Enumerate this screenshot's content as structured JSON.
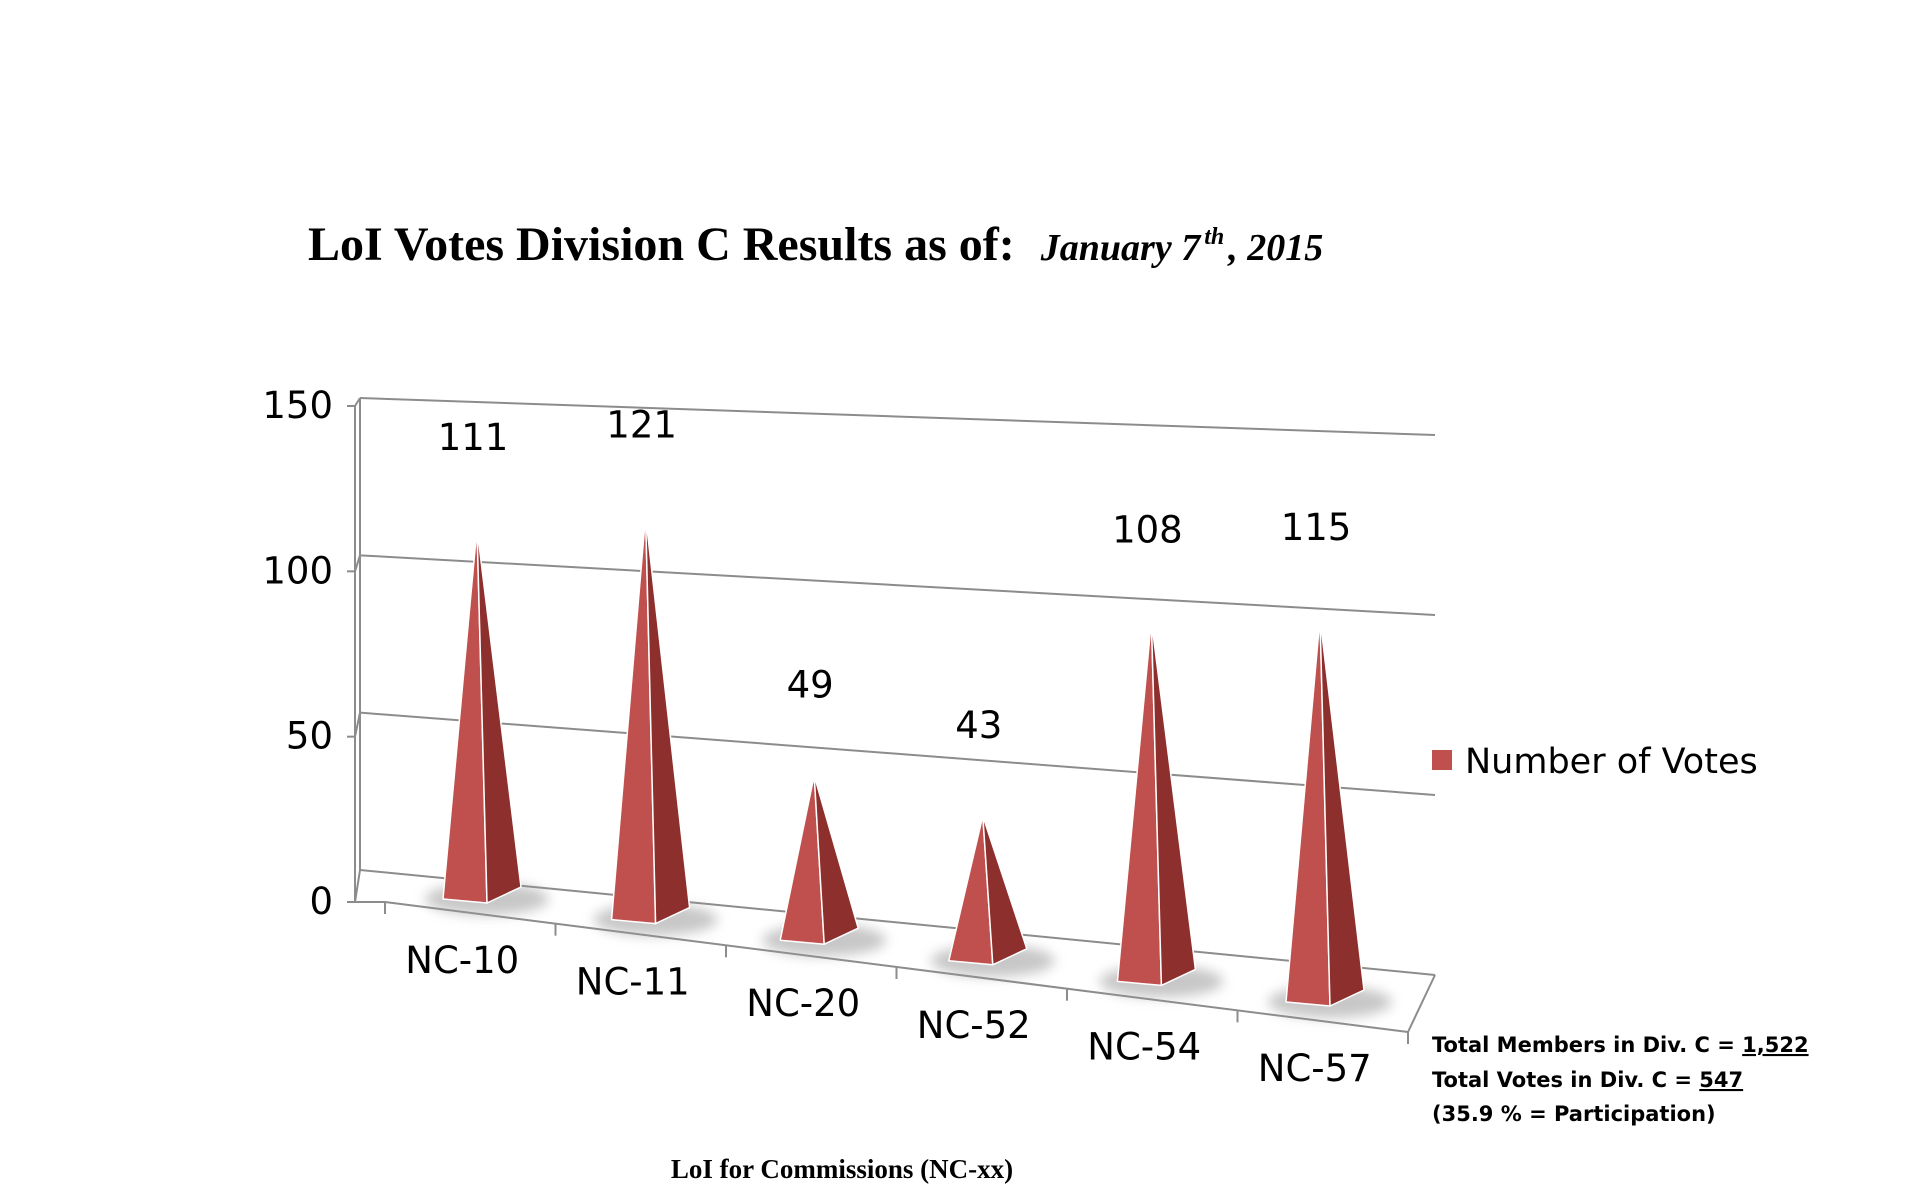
{
  "chart_data": {
    "type": "bar",
    "title": "LoI Votes Division C Results as of:",
    "title_date": {
      "month_day": "January 7",
      "suffix": "th",
      "year": ", 2015"
    },
    "xlabel": "LoI for Commissions (NC-xx)",
    "ylabel": "",
    "ylim": [
      0,
      150
    ],
    "yticks": [
      "0",
      "50",
      "100",
      "150"
    ],
    "categories": [
      "NC-10",
      "NC-11",
      "NC-20",
      "NC-52",
      "NC-54",
      "NC-57"
    ],
    "series": [
      {
        "name": "Number of Votes",
        "values": [
          111,
          121,
          49,
          43,
          108,
          115
        ],
        "color": "#c0504d",
        "dark_color": "#8c2f2d"
      }
    ],
    "grid": true,
    "legend_position": "right",
    "shape": "3d-pyramid"
  },
  "notes": {
    "members_label": "Total Members in Div. C = ",
    "members_value": "1,522",
    "votes_label": "Total Votes in Div. C = ",
    "votes_value": "547",
    "participation": "(35.9 % = Participation)"
  }
}
